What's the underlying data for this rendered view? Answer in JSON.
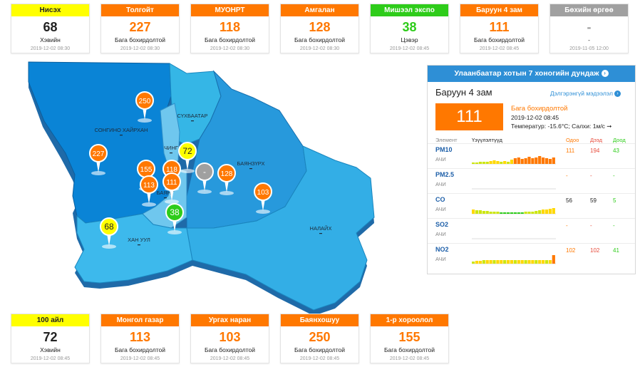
{
  "top_cards": [
    {
      "name": "Нисэх",
      "value": "68",
      "level": "Хэвийн",
      "ts": "2019-12-02 08:30",
      "color": "#ffff00",
      "text": "#222222"
    },
    {
      "name": "Толгойт",
      "value": "227",
      "level": "Бага бохирдолтой",
      "ts": "2019-12-02 08:30",
      "color": "#ff7800",
      "text": "#ff7800"
    },
    {
      "name": "МУОНРТ",
      "value": "118",
      "level": "Бага бохирдолтой",
      "ts": "2019-12-02 08:30",
      "color": "#ff7800",
      "text": "#ff7800"
    },
    {
      "name": "Амгалан",
      "value": "128",
      "level": "Бага бохирдолтой",
      "ts": "2019-12-02 08:30",
      "color": "#ff7800",
      "text": "#ff7800"
    },
    {
      "name": "Мишээл экспо",
      "value": "38",
      "level": "Цэвэр",
      "ts": "2019-12-02 08:45",
      "color": "#2ecc1a",
      "text": "#2ecc1a"
    },
    {
      "name": "Баруун 4 зам",
      "value": "111",
      "level": "Бага бохирдолтой",
      "ts": "2019-12-02 08:45",
      "color": "#ff7800",
      "text": "#ff7800"
    },
    {
      "name": "Бөхийн өргөө",
      "value": "-",
      "level": "-",
      "ts": "2019-11-05 12:00",
      "color": "#a0a0a0",
      "text": "#a0a0a0"
    }
  ],
  "bottom_cards": [
    {
      "name": "100 айл",
      "value": "72",
      "level": "Хэвийн",
      "ts": "2019-12-02 08:45",
      "color": "#ffff00",
      "text": "#222222"
    },
    {
      "name": "Монгол газар",
      "value": "113",
      "level": "Бага бохирдолтой",
      "ts": "2019-12-02 08:45",
      "color": "#ff7800",
      "text": "#ff7800"
    },
    {
      "name": "Ургах наран",
      "value": "103",
      "level": "Бага бохирдолтой",
      "ts": "2019-12-02 08:45",
      "color": "#ff7800",
      "text": "#ff7800"
    },
    {
      "name": "Баянхошуу",
      "value": "250",
      "level": "Бага бохирдолтой",
      "ts": "2019-12-02 08:45",
      "color": "#ff7800",
      "text": "#ff7800"
    },
    {
      "name": "1-р хороолол",
      "value": "155",
      "level": "Бага бохирдолтой",
      "ts": "2019-12-02 08:45",
      "color": "#ff7800",
      "text": "#ff7800"
    }
  ],
  "map": {
    "districts": [
      {
        "label": "СОНГИНО ХАЙРХАН"
      },
      {
        "label": "СҮХБААТАР"
      },
      {
        "label": "ЧИНГ"
      },
      {
        "label": "БАЯНЗҮРХ"
      },
      {
        "label": "БАЯНГ"
      },
      {
        "label": "ХАН УУЛ"
      },
      {
        "label": "НАЛАЙХ"
      }
    ],
    "markers": [
      {
        "value": "250",
        "color": "#ff7800",
        "text_color": "#ffffff"
      },
      {
        "value": "227",
        "color": "#ff7800",
        "text_color": "#ffffff"
      },
      {
        "value": "72",
        "color": "#ffff00",
        "text_color": "#222222"
      },
      {
        "value": "155",
        "color": "#ff7800",
        "text_color": "#ffffff"
      },
      {
        "value": "118",
        "color": "#ff7800",
        "text_color": "#ffffff"
      },
      {
        "value": "-",
        "color": "#a0a0a0",
        "text_color": "#ffffff"
      },
      {
        "value": "128",
        "color": "#ff7800",
        "text_color": "#ffffff"
      },
      {
        "value": "113",
        "color": "#ff7800",
        "text_color": "#ffffff"
      },
      {
        "value": "111",
        "color": "#ff7800",
        "text_color": "#ffffff"
      },
      {
        "value": "103",
        "color": "#ff7800",
        "text_color": "#ffffff"
      },
      {
        "value": "38",
        "color": "#2ecc1a",
        "text_color": "#ffffff"
      },
      {
        "value": "68",
        "color": "#ffff00",
        "text_color": "#222222"
      }
    ]
  },
  "panel": {
    "header": "Улаанбаатар хотын 7 хоногийн дундаж",
    "station": "Баруун 4 зам",
    "details_link": "Дэлгэрэнгүй мэдээлэл",
    "value": "111",
    "level": "Бага бохирдолтой",
    "datetime": "2019-12-02 08:45",
    "weather": "Температур: -15.6°C; Салхи: 1м/с ➞",
    "col_element": "Элемент",
    "col_trend": "Үзүүлэлтүүд",
    "col_now": "Одоо",
    "col_max": "Дээд",
    "col_min": "Доод",
    "rows": [
      {
        "name": "PM10",
        "unit": "АЧИ",
        "now": "111",
        "max": "194",
        "min": "43"
      },
      {
        "name": "PM2.5",
        "unit": "АЧИ",
        "now": "-",
        "max": "-",
        "min": "-"
      },
      {
        "name": "CO",
        "unit": "АЧИ",
        "now": "56",
        "max": "59",
        "min": "5"
      },
      {
        "name": "SO2",
        "unit": "АЧИ",
        "now": "-",
        "max": "-",
        "min": "-"
      },
      {
        "name": "NO2",
        "unit": "АЧИ",
        "now": "102",
        "max": "102",
        "min": "41"
      }
    ]
  }
}
